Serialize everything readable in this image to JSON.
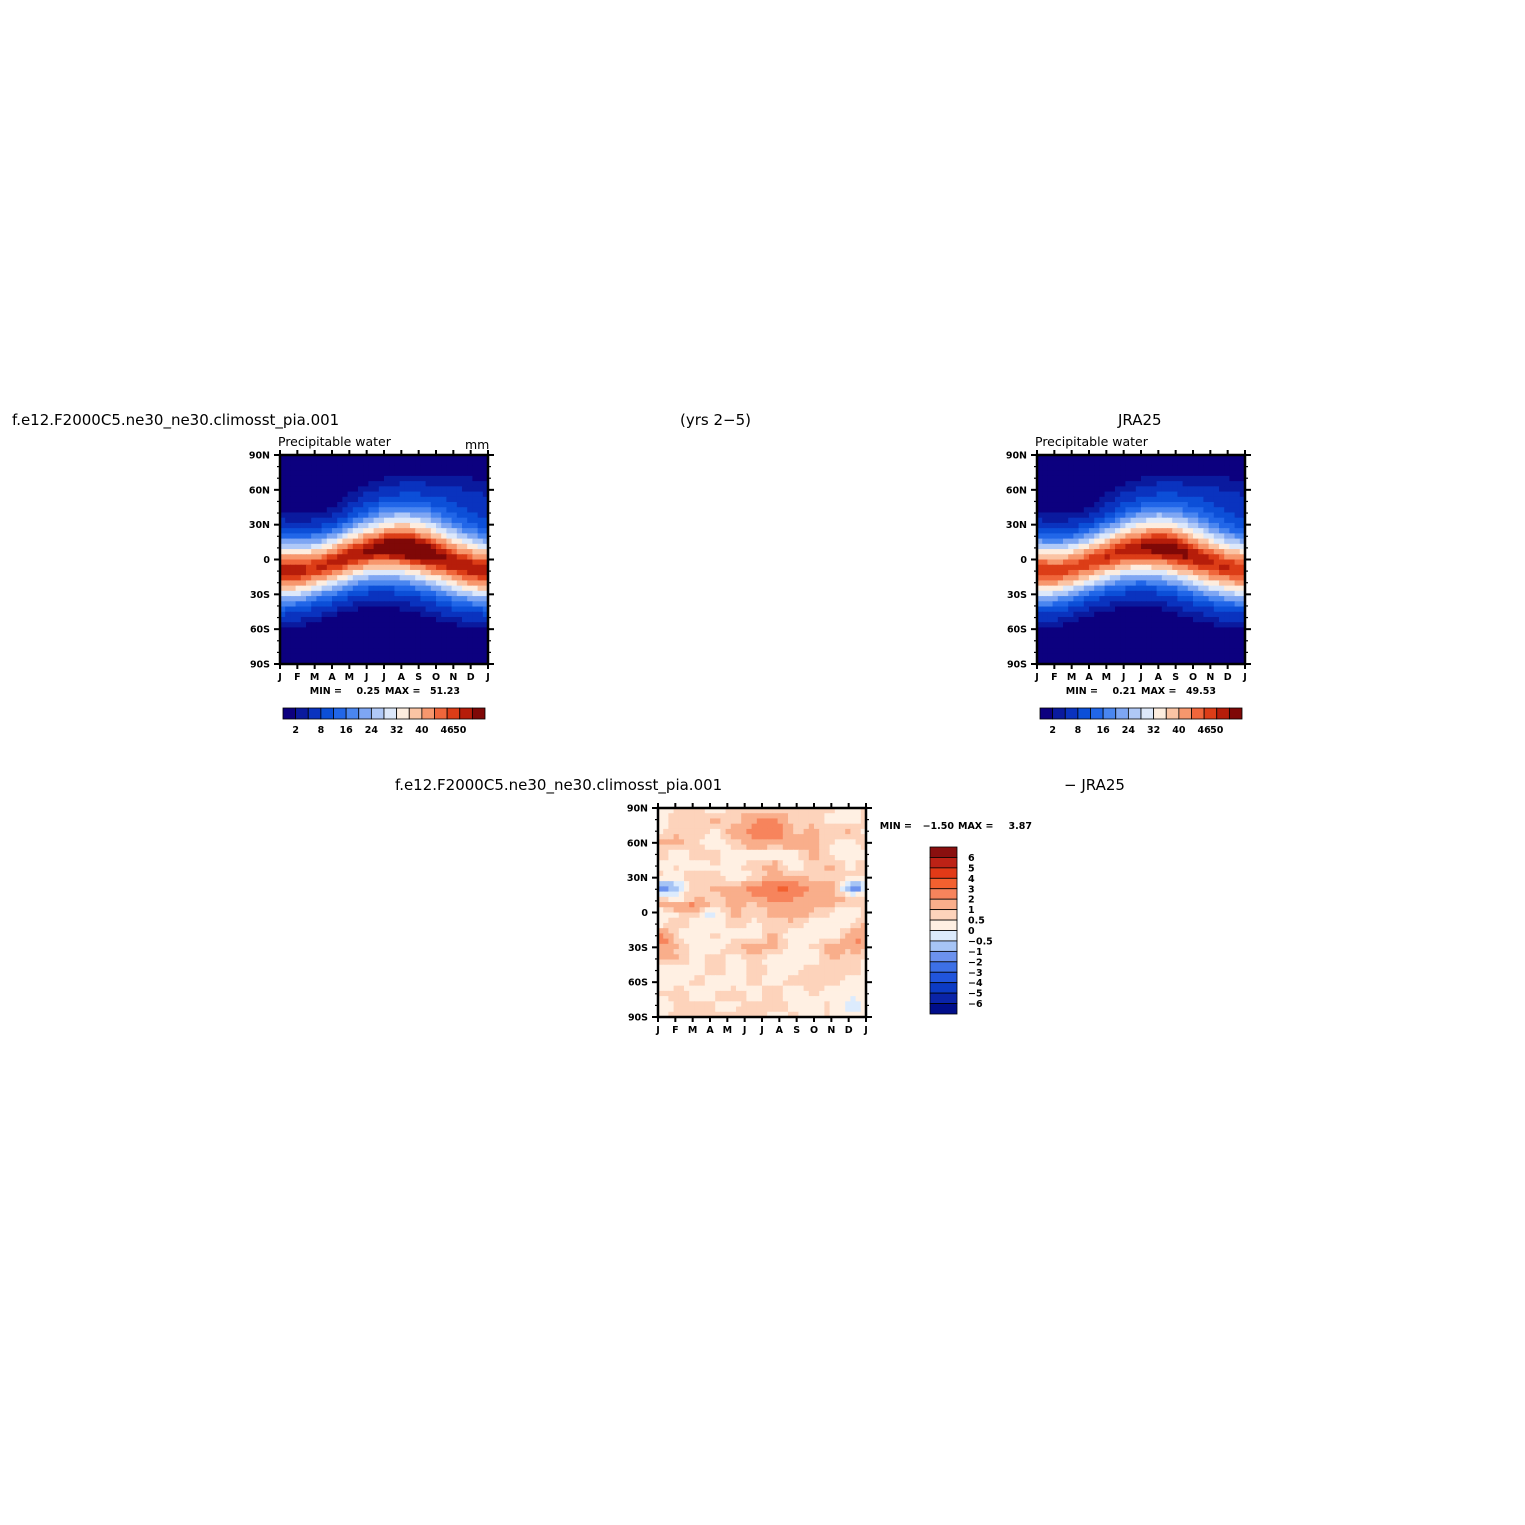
{
  "figure": {
    "title_left": "f.e12.F2000C5.ne30_ne30.climosst_pia.001",
    "title_center": "(yrs 2−5)",
    "title_right": "JRA25",
    "diff_title_left": "f.e12.F2000C5.ne30_ne30.climosst_pia.001",
    "diff_title_right": "− JRA25"
  },
  "colors": {
    "full_scale": [
      "#0c007f",
      "#0a1a9e",
      "#0a33bf",
      "#0c4fd8",
      "#2166e8",
      "#4a86f0",
      "#7ea6f3",
      "#b0c9f7",
      "#dde8fa",
      "#fdeddf",
      "#fbc4a4",
      "#f7976d",
      "#f0663b",
      "#dc3d17",
      "#b61d0a",
      "#7f0807"
    ],
    "diff_scale": [
      "#000e8a",
      "#0a24a8",
      "#0c3bc4",
      "#2155dc",
      "#3d70e6",
      "#6c92ee",
      "#a6c4f5",
      "#dcebfd",
      "#fff0e3",
      "#fdd3bb",
      "#f9ae8b",
      "#f7845c",
      "#f3602f",
      "#e23a17",
      "#bd2216",
      "#8a0f0f"
    ]
  },
  "chart_data": [
    {
      "type": "heatmap",
      "name": "model",
      "subtitle": "Precipitable water",
      "units": "mm",
      "x_ticklabels": [
        "J",
        "F",
        "M",
        "A",
        "M",
        "J",
        "J",
        "A",
        "S",
        "O",
        "N",
        "D",
        "J"
      ],
      "y_ticklabels": [
        "90N",
        "60N",
        "30N",
        "0",
        "30S",
        "60S",
        "90S"
      ],
      "ylim": [
        -90,
        90
      ],
      "min_text": "MIN =",
      "min_value": "0.25",
      "max_text": "MAX =",
      "max_value": "51.23",
      "colorbar_labels": [
        "2",
        "8",
        "16",
        "24",
        "32",
        "40",
        "46",
        "50"
      ],
      "z_summary": {
        "min": 0.25,
        "max": 51.23,
        "peak_month": "Aug",
        "peak_lat": 8,
        "peak_value": 51
      },
      "levels": [
        2,
        4,
        8,
        12,
        16,
        20,
        24,
        28,
        32,
        36,
        40,
        44,
        46,
        48,
        50
      ]
    },
    {
      "type": "heatmap",
      "name": "obs",
      "subtitle": "Precipitable water",
      "x_ticklabels": [
        "J",
        "F",
        "M",
        "A",
        "M",
        "J",
        "J",
        "A",
        "S",
        "O",
        "N",
        "D",
        "J"
      ],
      "y_ticklabels": [
        "90N",
        "60N",
        "30N",
        "0",
        "30S",
        "60S",
        "90S"
      ],
      "ylim": [
        -90,
        90
      ],
      "min_text": "MIN =",
      "min_value": "0.21",
      "max_text": "MAX =",
      "max_value": "49.53",
      "colorbar_labels": [
        "2",
        "8",
        "16",
        "24",
        "32",
        "40",
        "46",
        "50"
      ],
      "z_summary": {
        "min": 0.21,
        "max": 49.53,
        "peak_month": "Aug",
        "peak_lat": 8,
        "peak_value": 49.5
      },
      "levels": [
        2,
        4,
        8,
        12,
        16,
        20,
        24,
        28,
        32,
        36,
        40,
        44,
        46,
        48,
        50
      ]
    },
    {
      "type": "heatmap",
      "name": "difference",
      "x_ticklabels": [
        "J",
        "F",
        "M",
        "A",
        "M",
        "J",
        "J",
        "A",
        "S",
        "O",
        "N",
        "D",
        "J"
      ],
      "y_ticklabels": [
        "90N",
        "60N",
        "30N",
        "0",
        "30S",
        "60S",
        "90S"
      ],
      "ylim": [
        -90,
        90
      ],
      "min_text": "MIN =",
      "min_value": "−1.50",
      "max_text": "MAX =",
      "max_value": "3.87",
      "colorbar_labels": [
        "6",
        "5",
        "4",
        "3",
        "2",
        "1",
        "0.5",
        "0",
        "−0.5",
        "−1",
        "−2",
        "−3",
        "−4",
        "−5",
        "−6"
      ],
      "z_summary": {
        "min": -1.5,
        "max": 3.87
      },
      "levels": [
        -6,
        -5,
        -4,
        -3,
        -2,
        -1,
        -0.5,
        0,
        0.5,
        1,
        2,
        3,
        4,
        5,
        6
      ]
    }
  ]
}
